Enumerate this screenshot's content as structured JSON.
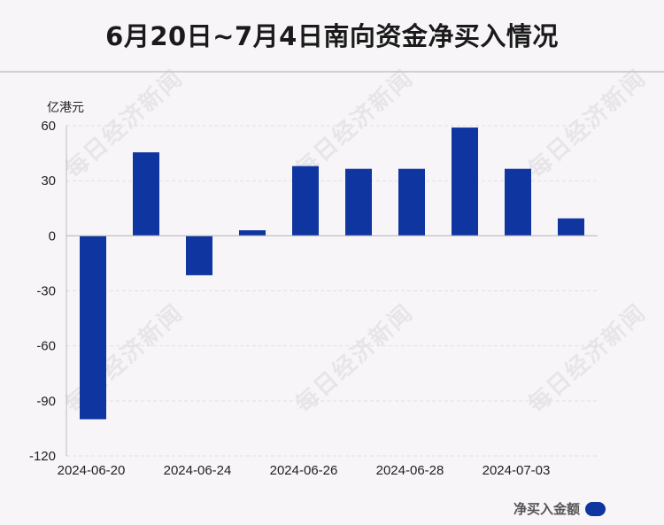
{
  "title": "6月20日~7月4日南向资金净买入情况",
  "watermark": "每日经济新闻",
  "colors": {
    "bar": "#0f35a0",
    "grid": "#e2dde2",
    "axis": "#bbbbbb",
    "background": "#f8f5f8"
  },
  "chart_data": {
    "type": "bar",
    "ylabel": "亿港元",
    "ylim": [
      -120,
      60
    ],
    "yticks": [
      60,
      30,
      0,
      -30,
      -60,
      -90,
      -120
    ],
    "grid": true,
    "legend_position": "bottom-right",
    "series": [
      {
        "name": "净买入金额",
        "values": [
          -100,
          45.5,
          -21.5,
          3,
          38,
          36.5,
          36.5,
          59,
          36.5,
          9.5
        ]
      }
    ],
    "xtick_labels": [
      "2024-06-20",
      "2024-06-24",
      "2024-06-26",
      "2024-06-28",
      "2024-07-03"
    ],
    "xtick_positions": [
      0,
      2,
      4,
      6,
      8
    ]
  }
}
